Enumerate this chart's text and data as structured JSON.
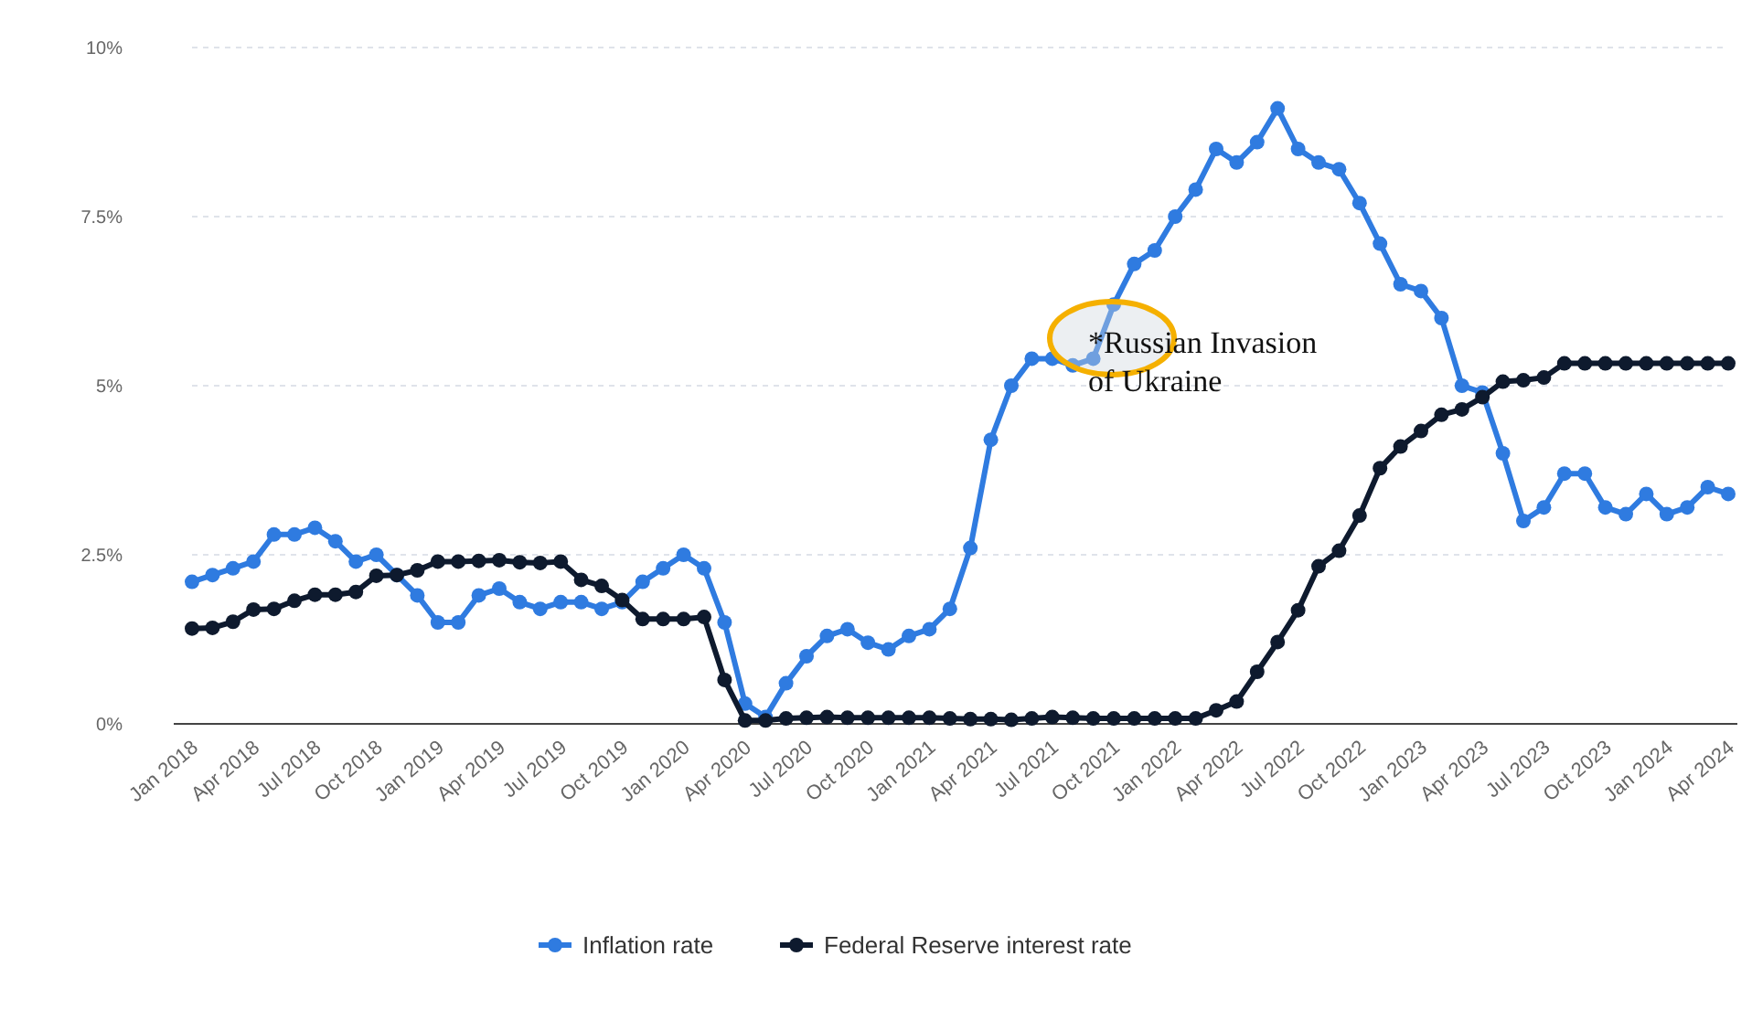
{
  "chart_data": {
    "type": "line",
    "categories": [
      "Jan 2018",
      null,
      null,
      "Apr 2018",
      null,
      null,
      "Jul 2018",
      null,
      null,
      "Oct 2018",
      null,
      null,
      "Jan 2019",
      null,
      null,
      "Apr 2019",
      null,
      null,
      "Jul 2019",
      null,
      null,
      "Oct 2019",
      null,
      null,
      "Jan 2020",
      null,
      null,
      "Apr 2020",
      null,
      null,
      "Jul 2020",
      null,
      null,
      "Oct 2020",
      null,
      null,
      "Jan 2021",
      null,
      null,
      "Apr 2021",
      null,
      null,
      "Jul 2021",
      null,
      null,
      "Oct 2021",
      null,
      null,
      "Jan 2022",
      null,
      null,
      "Apr 2022",
      null,
      null,
      "Jul 2022",
      null,
      null,
      "Oct 2022",
      null,
      null,
      "Jan 2023",
      null,
      null,
      "Apr 2023",
      null,
      null,
      "Jul 2023",
      null,
      null,
      "Oct 2023",
      null,
      null,
      "Jan 2024",
      null,
      null,
      "Apr 2024"
    ],
    "series": [
      {
        "name": "Inflation rate",
        "color": "#2f7be0",
        "values": [
          2.1,
          2.2,
          2.3,
          2.4,
          2.8,
          2.8,
          2.9,
          2.7,
          2.4,
          2.5,
          2.2,
          1.9,
          1.5,
          1.5,
          1.9,
          2.0,
          1.8,
          1.7,
          1.8,
          1.8,
          1.7,
          1.8,
          2.1,
          2.3,
          2.5,
          2.3,
          1.5,
          0.3,
          0.1,
          0.6,
          1.0,
          1.3,
          1.4,
          1.2,
          1.1,
          1.3,
          1.4,
          1.7,
          2.6,
          4.2,
          5.0,
          5.4,
          5.4,
          5.3,
          5.4,
          6.2,
          6.8,
          7.0,
          7.5,
          7.9,
          8.5,
          8.3,
          8.6,
          9.1,
          8.5,
          8.3,
          8.2,
          7.7,
          7.1,
          6.5,
          6.4,
          6.0,
          5.0,
          4.9,
          4.0,
          3.0,
          3.2,
          3.7,
          3.7,
          3.2,
          3.1,
          3.4,
          3.1,
          3.2,
          3.5,
          3.4
        ]
      },
      {
        "name": "Federal Reserve interest rate",
        "color": "#0e1a2e",
        "values": [
          1.41,
          1.42,
          1.51,
          1.69,
          1.7,
          1.82,
          1.91,
          1.91,
          1.95,
          2.19,
          2.2,
          2.27,
          2.4,
          2.4,
          2.41,
          2.42,
          2.39,
          2.38,
          2.4,
          2.13,
          2.04,
          1.83,
          1.55,
          1.55,
          1.55,
          1.58,
          0.65,
          0.05,
          0.05,
          0.08,
          0.09,
          0.1,
          0.09,
          0.09,
          0.09,
          0.09,
          0.09,
          0.08,
          0.07,
          0.07,
          0.06,
          0.08,
          0.1,
          0.09,
          0.08,
          0.08,
          0.08,
          0.08,
          0.08,
          0.08,
          0.2,
          0.33,
          0.77,
          1.21,
          1.68,
          2.33,
          2.56,
          3.08,
          3.78,
          4.1,
          4.33,
          4.57,
          4.65,
          4.83,
          5.06,
          5.08,
          5.12,
          5.33,
          5.33,
          5.33,
          5.33,
          5.33,
          5.33,
          5.33,
          5.33,
          5.33
        ]
      }
    ],
    "ylim": [
      0,
      10
    ],
    "yticks": [
      {
        "value": 0,
        "label": "0%"
      },
      {
        "value": 2.5,
        "label": "2.5%"
      },
      {
        "value": 5,
        "label": "5%"
      },
      {
        "value": 7.5,
        "label": "7.5%"
      },
      {
        "value": 10,
        "label": "10%"
      }
    ],
    "grid": "y",
    "marker": "circle",
    "line_style": "solid",
    "legend": "bottom",
    "annotations": [
      "*Russian Invasion of Ukraine"
    ]
  }
}
